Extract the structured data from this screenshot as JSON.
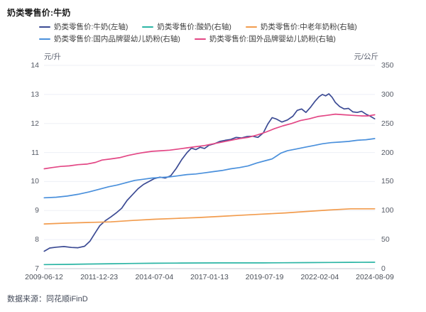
{
  "title": "奶类零售价:牛奶",
  "source": "数据来源：同花顺iFinD",
  "legend_rows": [
    [
      0,
      1,
      2
    ],
    [
      3,
      4
    ]
  ],
  "chart_data": {
    "type": "line",
    "title": "奶类零售价:牛奶",
    "grid": true,
    "legend_position": "top",
    "left_axis": {
      "label": "元/升",
      "min": 7,
      "max": 14,
      "ticks": [
        14,
        13,
        12,
        11,
        10,
        9,
        8,
        7
      ]
    },
    "right_axis": {
      "label": "元/公斤",
      "min": 0,
      "max": 350,
      "ticks": [
        350,
        300,
        250,
        200,
        150,
        100,
        50,
        0
      ]
    },
    "x_axis": {
      "min": 2009.44,
      "max": 2024.61,
      "tick_labels": [
        "2009-06-12",
        "2011-12-23",
        "2014-07-04",
        "2017-01-13",
        "2019-07-19",
        "2022-02-04",
        "2024-08-09"
      ]
    },
    "series": [
      {
        "id": "milk",
        "name": "奶类零售价:牛奶(左轴)",
        "axis": "left",
        "color": "#3c4b94",
        "x": [
          2009.45,
          2009.7,
          2010.0,
          2010.35,
          2010.7,
          2011.0,
          2011.3,
          2011.55,
          2011.8,
          2012.0,
          2012.25,
          2012.5,
          2012.75,
          2013.0,
          2013.25,
          2013.5,
          2013.75,
          2014.0,
          2014.25,
          2014.5,
          2014.75,
          2015.0,
          2015.25,
          2015.5,
          2015.75,
          2016.0,
          2016.2,
          2016.4,
          2016.6,
          2016.8,
          2017.0,
          2017.25,
          2017.5,
          2017.75,
          2018.0,
          2018.25,
          2018.5,
          2018.75,
          2019.0,
          2019.25,
          2019.5,
          2019.7,
          2019.9,
          2020.1,
          2020.35,
          2020.6,
          2020.85,
          2021.05,
          2021.25,
          2021.45,
          2021.65,
          2021.85,
          2022.05,
          2022.2,
          2022.35,
          2022.5,
          2022.65,
          2022.8,
          2023.0,
          2023.2,
          2023.4,
          2023.6,
          2023.8,
          2024.0,
          2024.2,
          2024.4,
          2024.6
        ],
        "values": [
          7.6,
          7.71,
          7.74,
          7.76,
          7.73,
          7.72,
          7.77,
          7.95,
          8.25,
          8.48,
          8.65,
          8.78,
          8.92,
          9.08,
          9.35,
          9.55,
          9.75,
          9.9,
          10.0,
          10.1,
          10.15,
          10.12,
          10.2,
          10.45,
          10.75,
          11.0,
          11.15,
          11.1,
          11.18,
          11.14,
          11.25,
          11.3,
          11.38,
          11.42,
          11.45,
          11.52,
          11.5,
          11.55,
          11.56,
          11.52,
          11.68,
          11.98,
          12.2,
          12.15,
          12.05,
          12.12,
          12.25,
          12.45,
          12.5,
          12.38,
          12.55,
          12.75,
          12.92,
          13.0,
          12.95,
          13.02,
          12.9,
          12.72,
          12.58,
          12.5,
          12.52,
          12.4,
          12.38,
          12.42,
          12.32,
          12.25,
          12.16
        ]
      },
      {
        "id": "yogurt",
        "name": "奶类零售价:酸奶(右轴)",
        "axis": "right",
        "color": "#2cb5a5",
        "x": [
          2009.45,
          2010.5,
          2011.5,
          2012.5,
          2013.5,
          2014.5,
          2015.5,
          2016.5,
          2017.5,
          2018.5,
          2019.5,
          2020.5,
          2021.5,
          2022.5,
          2023.5,
          2024.6
        ],
        "values": [
          7,
          7.4,
          7.9,
          8.4,
          8.9,
          9.3,
          9.6,
          9.8,
          9.9,
          9.9,
          9.9,
          10.1,
          10.4,
          10.7,
          10.9,
          11
        ]
      },
      {
        "id": "middle-aged-milk-powder",
        "name": "奶类零售价:中老年奶粉(右轴)",
        "axis": "right",
        "color": "#f29c4e",
        "x": [
          2009.45,
          2010.5,
          2011.5,
          2012.5,
          2013.5,
          2014.5,
          2015.5,
          2016.5,
          2017.5,
          2018.5,
          2019.5,
          2020.5,
          2021.5,
          2022.5,
          2023.5,
          2024.6
        ],
        "values": [
          77,
          78.5,
          79.5,
          80.5,
          83,
          85,
          86.5,
          88,
          90,
          92,
          94,
          96,
          98.5,
          101,
          103,
          103
        ]
      },
      {
        "id": "domestic-infant-formula",
        "name": "奶类零售价:国内品牌婴幼儿奶粉(右轴)",
        "axis": "right",
        "color": "#4a90dc",
        "x": [
          2009.45,
          2010.0,
          2010.5,
          2011.0,
          2011.5,
          2012.0,
          2012.4,
          2012.8,
          2013.2,
          2013.6,
          2014.0,
          2014.4,
          2014.8,
          2015.2,
          2015.6,
          2016.0,
          2016.4,
          2016.8,
          2017.2,
          2017.6,
          2018.0,
          2018.4,
          2018.8,
          2019.2,
          2019.6,
          2019.9,
          2020.1,
          2020.3,
          2020.6,
          2021.0,
          2021.4,
          2021.8,
          2022.2,
          2022.6,
          2023.0,
          2023.4,
          2023.8,
          2024.2,
          2024.6
        ],
        "values": [
          122,
          123,
          125,
          128,
          132,
          137,
          141,
          144,
          148,
          152,
          154,
          156,
          157,
          158,
          160,
          162,
          163,
          165,
          167,
          169,
          172,
          174,
          177,
          182,
          186,
          189,
          194,
          199,
          203,
          206,
          209,
          212,
          215,
          217,
          218,
          219,
          221,
          222,
          224
        ]
      },
      {
        "id": "foreign-infant-formula",
        "name": "奶类零售价:国外品牌婴幼儿奶粉(右轴)",
        "axis": "right",
        "color": "#e34785",
        "x": [
          2009.45,
          2009.8,
          2010.2,
          2010.6,
          2011.0,
          2011.4,
          2011.8,
          2012.1,
          2012.5,
          2012.9,
          2013.3,
          2013.7,
          2014.0,
          2014.4,
          2014.8,
          2015.2,
          2015.6,
          2016.0,
          2016.4,
          2016.8,
          2017.2,
          2017.6,
          2018.0,
          2018.4,
          2018.8,
          2019.2,
          2019.6,
          2020.0,
          2020.4,
          2020.8,
          2021.2,
          2021.6,
          2022.0,
          2022.4,
          2022.8,
          2023.2,
          2023.6,
          2024.0,
          2024.3,
          2024.6
        ],
        "values": [
          172,
          174,
          176,
          177,
          179,
          180,
          183,
          187,
          189,
          191,
          195,
          198,
          200,
          202,
          203,
          204,
          206,
          208,
          210,
          212,
          215,
          218,
          221,
          224,
          226,
          230,
          235,
          241,
          246,
          250,
          255,
          258,
          262,
          264,
          266,
          265,
          264,
          263,
          263,
          265
        ]
      }
    ],
    "colors": {
      "grid": "#edeff6",
      "axis_line": "#c2c6d2",
      "tick_text": "#565b66"
    }
  }
}
